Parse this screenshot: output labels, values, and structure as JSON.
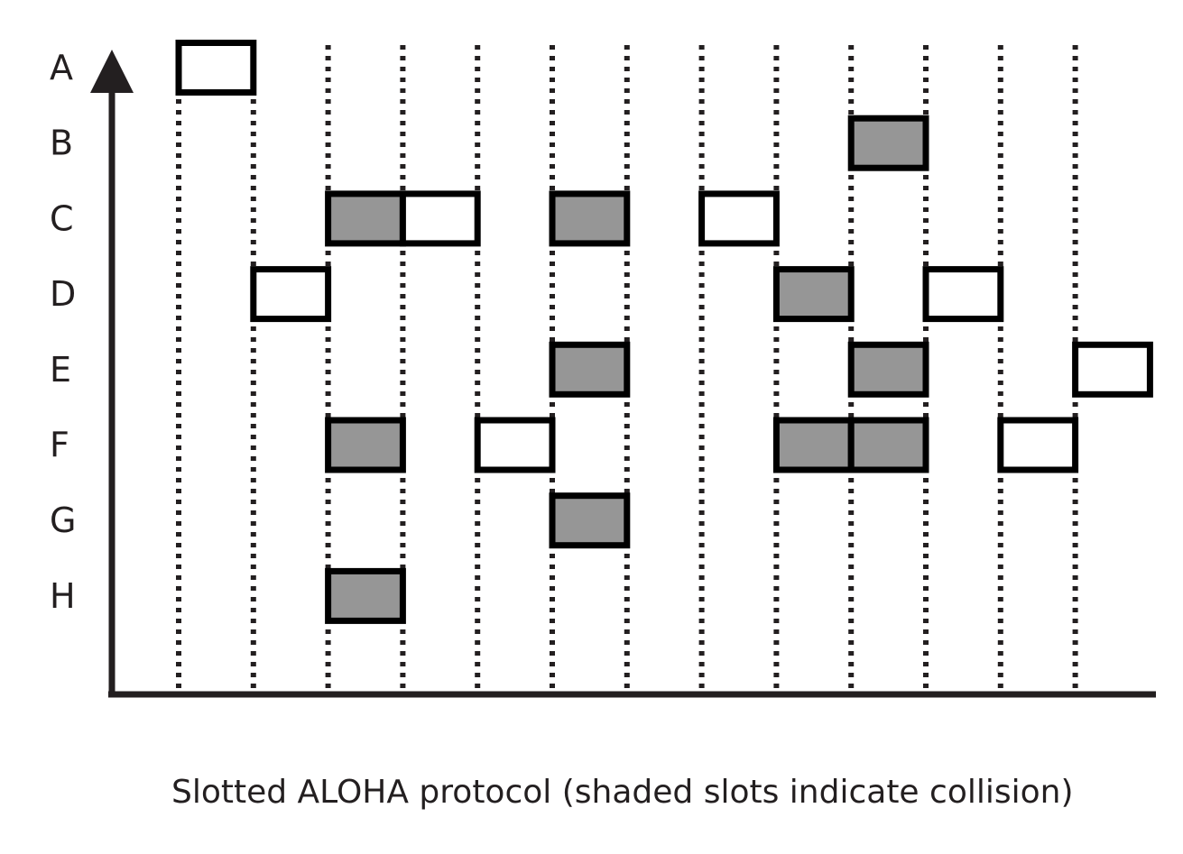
{
  "diagram": {
    "caption": "Slotted ALOHA protocol (shaded slots indicate collision)",
    "stations": [
      "A",
      "B",
      "C",
      "D",
      "E",
      "F",
      "G",
      "H"
    ],
    "slot_count": 13,
    "colors": {
      "collision_fill": "#969696",
      "success_fill": "#ffffff",
      "outline": "#000000",
      "ink": "#231f20"
    },
    "transmissions": [
      {
        "station": "A",
        "slot": 1,
        "collision": false
      },
      {
        "station": "B",
        "slot": 10,
        "collision": true
      },
      {
        "station": "C",
        "slot": 3,
        "collision": true
      },
      {
        "station": "C",
        "slot": 4,
        "collision": false
      },
      {
        "station": "C",
        "slot": 6,
        "collision": true
      },
      {
        "station": "C",
        "slot": 8,
        "collision": false
      },
      {
        "station": "D",
        "slot": 2,
        "collision": false
      },
      {
        "station": "D",
        "slot": 9,
        "collision": true
      },
      {
        "station": "D",
        "slot": 11,
        "collision": false
      },
      {
        "station": "E",
        "slot": 6,
        "collision": true
      },
      {
        "station": "E",
        "slot": 10,
        "collision": true
      },
      {
        "station": "E",
        "slot": 13,
        "collision": false
      },
      {
        "station": "F",
        "slot": 3,
        "collision": true
      },
      {
        "station": "F",
        "slot": 5,
        "collision": false
      },
      {
        "station": "F",
        "slot": 9,
        "collision": true
      },
      {
        "station": "F",
        "slot": 10,
        "collision": true
      },
      {
        "station": "F",
        "slot": 12,
        "collision": false
      },
      {
        "station": "G",
        "slot": 6,
        "collision": true
      },
      {
        "station": "H",
        "slot": 3,
        "collision": true
      }
    ]
  }
}
